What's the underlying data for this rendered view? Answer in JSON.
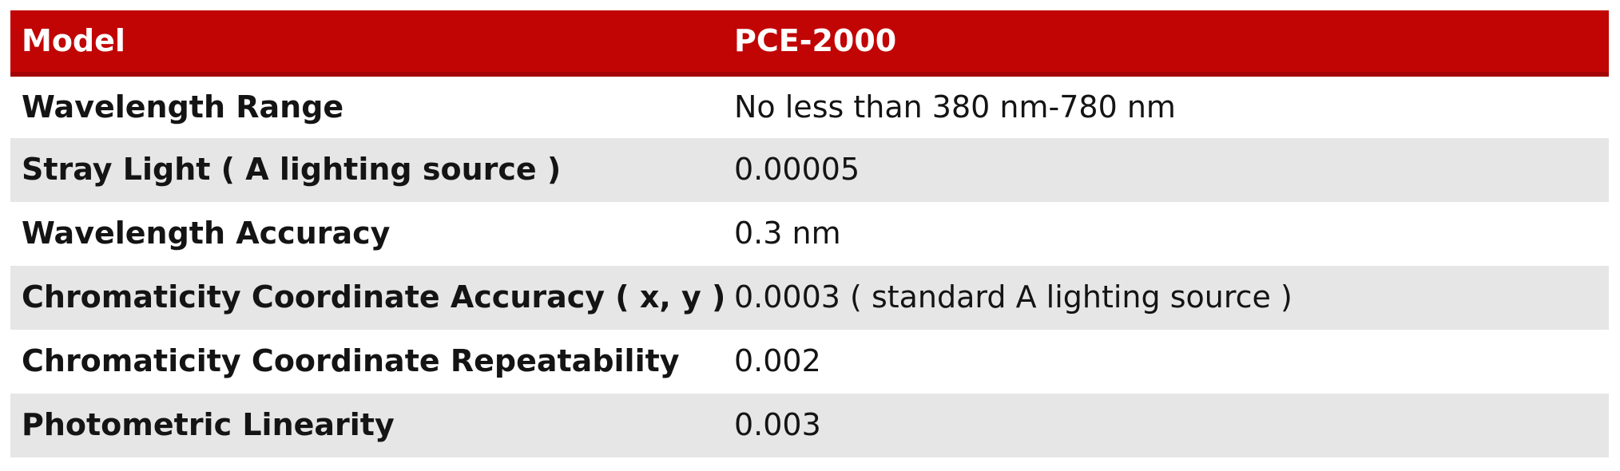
{
  "table": {
    "header": {
      "model_label": "Model",
      "model_value": "PCE-2000"
    },
    "rows": [
      {
        "label": "Wavelength Range",
        "value": "No less than 380 nm-780 nm"
      },
      {
        "label": "Stray Light ( A lighting source )",
        "value": "0.00005"
      },
      {
        "label": "Wavelength Accuracy",
        "value": "0.3 nm"
      },
      {
        "label": "Chromaticity Coordinate Accuracy ( x, y )",
        "value": "0.0003 ( standard A lighting source )"
      },
      {
        "label": "Chromaticity Coordinate Repeatability",
        "value": "0.002"
      },
      {
        "label": "Photometric Linearity",
        "value": "0.003"
      }
    ]
  },
  "colors": {
    "header_bg": "#c10505",
    "header_border": "#a40303",
    "header_text": "#ffffff",
    "alt_row_bg": "#e6e6e6",
    "row_bg": "#ffffff",
    "body_text": "#141414"
  }
}
